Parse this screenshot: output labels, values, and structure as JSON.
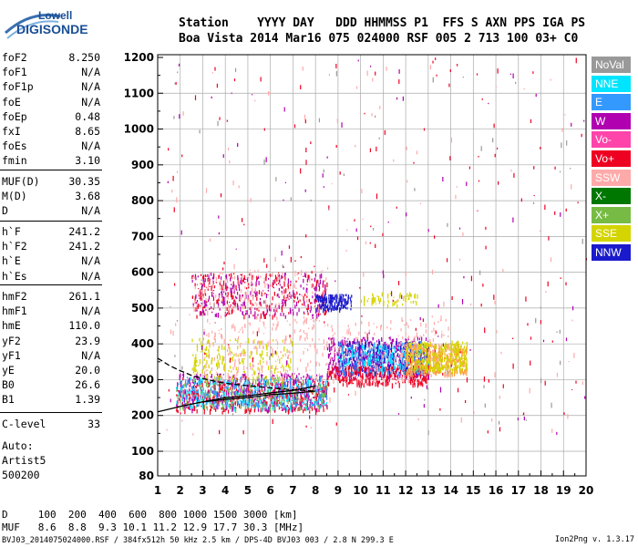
{
  "logo": {
    "top": "Lowell",
    "bottom": "DIGISONDE"
  },
  "header": {
    "line1": "Station    YYYY DAY   DDD HHMMSS P1  FFS S AXN PPS IGA PS",
    "line2": "Boa Vista 2014 Mar16 075 024000 RSF 005 2 713 100 03+ C0"
  },
  "params_group1": [
    {
      "name": "foF2",
      "value": "8.250"
    },
    {
      "name": "foF1",
      "value": "N/A"
    },
    {
      "name": "foF1p",
      "value": "N/A"
    },
    {
      "name": "foE",
      "value": "N/A"
    },
    {
      "name": "foEp",
      "value": "0.48"
    },
    {
      "name": "fxI",
      "value": "8.65"
    },
    {
      "name": "foEs",
      "value": "N/A"
    },
    {
      "name": "fmin",
      "value": "3.10"
    }
  ],
  "params_group2": [
    {
      "name": "MUF(D)",
      "value": "30.35"
    },
    {
      "name": "M(D)",
      "value": "3.68"
    },
    {
      "name": "D",
      "value": "N/A"
    }
  ],
  "params_group3": [
    {
      "name": "h`F",
      "value": "241.2"
    },
    {
      "name": "h`F2",
      "value": "241.2"
    },
    {
      "name": "h`E",
      "value": "N/A"
    },
    {
      "name": "h`Es",
      "value": "N/A"
    }
  ],
  "params_group4": [
    {
      "name": "hmF2",
      "value": "261.1"
    },
    {
      "name": "hmF1",
      "value": "N/A"
    },
    {
      "name": "hmE",
      "value": "110.0"
    },
    {
      "name": "yF2",
      "value": "23.9"
    },
    {
      "name": "yF1",
      "value": "N/A"
    },
    {
      "name": "yE",
      "value": "20.0"
    },
    {
      "name": "B0",
      "value": "26.6"
    },
    {
      "name": "B1",
      "value": "1.39"
    }
  ],
  "clevel": {
    "name": "C-level",
    "value": "33"
  },
  "auto": {
    "line1": "Auto:",
    "line2": "Artist5",
    "line3": "500200"
  },
  "footer": {
    "d_row": "D     100  200  400  600  800 1000 1500 3000 [km]",
    "muf_row": "MUF   8.6  8.8  9.3 10.1 11.2 12.9 17.7 30.3 [MHz]",
    "file_line": "BVJ03_2014075024000.RSF / 384fx512h 50 kHz 2.5 km / DPS-4D BVJ03 003 / 2.8 N 299.3 E",
    "version": "Ion2Png v. 1.3.17"
  },
  "chart_data": {
    "type": "scatter",
    "x_ticks": [
      "1",
      "2",
      "3",
      "4",
      "5",
      "6",
      "7",
      "8",
      "9",
      "10",
      "11",
      "12",
      "13",
      "14",
      "15",
      "16",
      "17",
      "18",
      "19",
      "20"
    ],
    "y_ticks": [
      "80",
      "100",
      "200",
      "300",
      "400",
      "500",
      "600",
      "700",
      "800",
      "900",
      "1000",
      "1100",
      "1200"
    ],
    "xlim": [
      1,
      20
    ],
    "ylim": [
      80,
      1200
    ],
    "grid": true,
    "legend_placement": "right",
    "legend": [
      {
        "name": "NoVal",
        "color": "#999999"
      },
      {
        "name": "NNE",
        "color": "#00e5ff"
      },
      {
        "name": "E",
        "color": "#3399ff"
      },
      {
        "name": "W",
        "color": "#b000b0"
      },
      {
        "name": "Vo-",
        "color": "#ff44aa"
      },
      {
        "name": "Vo+",
        "color": "#ee0022"
      },
      {
        "name": "SSW",
        "color": "#ffaaaa"
      },
      {
        "name": "X-",
        "color": "#007700"
      },
      {
        "name": "X+",
        "color": "#77bb44"
      },
      {
        "name": "SSE",
        "color": "#d4d400"
      },
      {
        "name": "NNW",
        "color": "#1a1acc"
      }
    ],
    "clusters": [
      {
        "color": "#ee0022",
        "x": [
          1.8,
          8.5
        ],
        "y": [
          215,
          300
        ],
        "count": 500
      },
      {
        "color": "#b000b0",
        "x": [
          1.8,
          8.5
        ],
        "y": [
          220,
          320
        ],
        "count": 400
      },
      {
        "color": "#00e5ff",
        "x": [
          1.8,
          8.5
        ],
        "y": [
          220,
          310
        ],
        "count": 250
      },
      {
        "color": "#77bb44",
        "x": [
          1.8,
          8.5
        ],
        "y": [
          220,
          300
        ],
        "count": 200
      },
      {
        "color": "#3399ff",
        "x": [
          2,
          8.5
        ],
        "y": [
          230,
          310
        ],
        "count": 200
      },
      {
        "color": "#d4d400",
        "x": [
          2.5,
          7
        ],
        "y": [
          300,
          420
        ],
        "count": 200
      },
      {
        "color": "#ee0022",
        "x": [
          2.5,
          8.5
        ],
        "y": [
          480,
          600
        ],
        "count": 250
      },
      {
        "color": "#b000b0",
        "x": [
          2.5,
          8.5
        ],
        "y": [
          480,
          600
        ],
        "count": 250
      },
      {
        "color": "#ffaaaa",
        "x": [
          2.5,
          8.5
        ],
        "y": [
          500,
          610
        ],
        "count": 150
      },
      {
        "color": "#1a1acc",
        "x": [
          8,
          9.6
        ],
        "y": [
          500,
          540
        ],
        "count": 150
      },
      {
        "color": "#d4d400",
        "x": [
          10,
          12.5
        ],
        "y": [
          510,
          545
        ],
        "count": 60
      },
      {
        "color": "#b000b0",
        "x": [
          8.5,
          13
        ],
        "y": [
          310,
          420
        ],
        "count": 450
      },
      {
        "color": "#1a1acc",
        "x": [
          9,
          13
        ],
        "y": [
          320,
          410
        ],
        "count": 350
      },
      {
        "color": "#ee0022",
        "x": [
          8.5,
          13
        ],
        "y": [
          290,
          340
        ],
        "count": 300
      },
      {
        "color": "#3399ff",
        "x": [
          9,
          13
        ],
        "y": [
          320,
          410
        ],
        "count": 150
      },
      {
        "color": "#00e5ff",
        "x": [
          9,
          13
        ],
        "y": [
          320,
          400
        ],
        "count": 150
      },
      {
        "color": "#ff9933",
        "x": [
          12,
          14.7
        ],
        "y": [
          320,
          400
        ],
        "count": 350
      },
      {
        "color": "#d4d400",
        "x": [
          12,
          14.7
        ],
        "y": [
          330,
          410
        ],
        "count": 300
      },
      {
        "color": "#ffaaaa",
        "x": [
          3,
          14
        ],
        "y": [
          300,
          480
        ],
        "count": 400
      },
      {
        "color": "#ee0022",
        "x": [
          1.2,
          20
        ],
        "y": [
          150,
          1200
        ],
        "count": 180
      },
      {
        "color": "#b000b0",
        "x": [
          1.2,
          20
        ],
        "y": [
          150,
          1200
        ],
        "count": 80
      },
      {
        "color": "#ffaaaa",
        "x": [
          1.2,
          20
        ],
        "y": [
          150,
          1200
        ],
        "count": 120
      },
      {
        "color": "#999999",
        "x": [
          1.2,
          20
        ],
        "y": [
          150,
          1200
        ],
        "count": 60
      }
    ],
    "curves": [
      {
        "name": "lower",
        "x": [
          1,
          2,
          3,
          4,
          5,
          6,
          7,
          8
        ],
        "y": [
          210,
          225,
          238,
          250,
          255,
          263,
          270,
          282
        ],
        "color": "#000000"
      },
      {
        "name": "upper",
        "x": [
          3,
          4,
          5,
          6,
          7,
          8
        ],
        "y": [
          238,
          245,
          250,
          258,
          262,
          268
        ],
        "color": "#000000"
      },
      {
        "name": "dashed",
        "x": [
          1,
          1.5,
          2,
          2.5,
          3,
          3.5,
          4,
          5,
          6,
          7,
          8
        ],
        "y": [
          360,
          340,
          325,
          312,
          303,
          296,
          290,
          283,
          277,
          272,
          268
        ],
        "color": "#000000"
      }
    ]
  }
}
